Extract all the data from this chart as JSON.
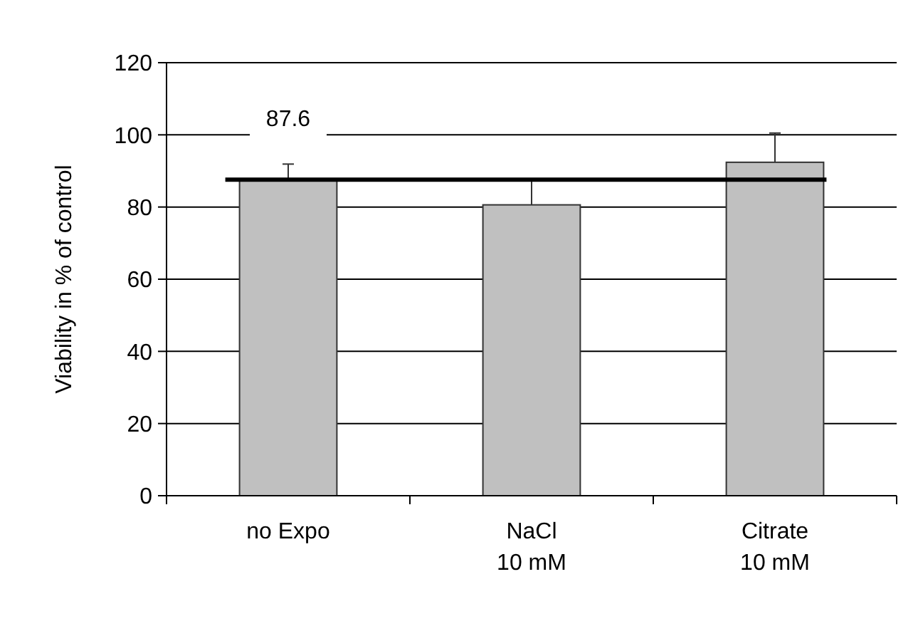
{
  "chart_data": {
    "type": "bar",
    "ylabel": "Viability in % of control",
    "categories": [
      "no Expo",
      "NaCl\n10 mM",
      "Citrate\n10 mM"
    ],
    "series": [
      {
        "color": "#c0c0c0",
        "values": [
          87.6,
          80.6,
          92.4
        ],
        "errors": [
          4.3,
          7,
          8.1
        ]
      }
    ],
    "ylim": [
      0,
      120
    ],
    "yticks": [
      0,
      20,
      40,
      60,
      80,
      100,
      120
    ],
    "grid": "y",
    "ref_lines": [
      {
        "axis": "y",
        "value": 87.6,
        "label": "87.6",
        "color": "#000000"
      }
    ]
  }
}
